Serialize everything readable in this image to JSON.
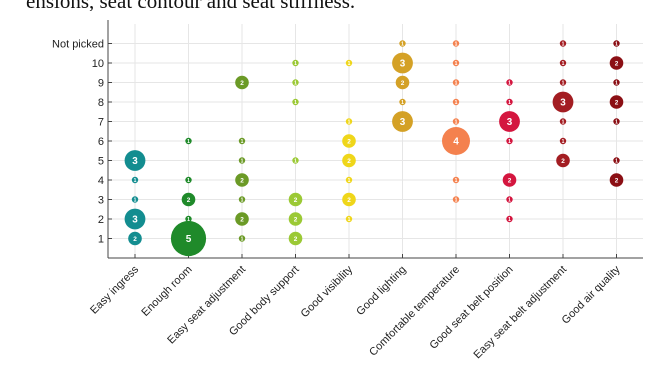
{
  "caption_fragment": "ensions, seat contour and seat stiffness.",
  "chart_data": {
    "type": "scatter",
    "subtype": "bubble",
    "title": "",
    "xlabel": "",
    "ylabel": "",
    "grid": true,
    "legend": "none",
    "y_ticks": [
      "1",
      "2",
      "3",
      "4",
      "5",
      "6",
      "7",
      "8",
      "9",
      "10",
      "Not picked"
    ],
    "categories": [
      "Easy ingress",
      "Enough room",
      "Easy seat adjustment",
      "Good body support",
      "Good visibility",
      "Good lighting",
      "Comfortable temperature",
      "Good seat belt position",
      "Easy seat belt adjustment",
      "Good air quality"
    ],
    "colors": [
      "#138d90",
      "#1f8a2a",
      "#6b9a26",
      "#9bc935",
      "#efd61a",
      "#d4a126",
      "#f4814e",
      "#d4163f",
      "#a31d22",
      "#8b0f14"
    ],
    "series": [
      {
        "category": "Easy ingress",
        "points": [
          {
            "y": 1,
            "n": 2
          },
          {
            "y": 2,
            "n": 3
          },
          {
            "y": 3,
            "n": 1
          },
          {
            "y": 4,
            "n": 1
          },
          {
            "y": 5,
            "n": 3
          }
        ]
      },
      {
        "category": "Enough room",
        "points": [
          {
            "y": 1,
            "n": 5
          },
          {
            "y": 2,
            "n": 1
          },
          {
            "y": 3,
            "n": 2
          },
          {
            "y": 4,
            "n": 1
          },
          {
            "y": 6,
            "n": 1
          }
        ]
      },
      {
        "category": "Easy seat adjustment",
        "points": [
          {
            "y": 1,
            "n": 1
          },
          {
            "y": 2,
            "n": 2
          },
          {
            "y": 3,
            "n": 1
          },
          {
            "y": 4,
            "n": 2
          },
          {
            "y": 5,
            "n": 1
          },
          {
            "y": 6,
            "n": 1
          },
          {
            "y": 9,
            "n": 2
          }
        ]
      },
      {
        "category": "Good body support",
        "points": [
          {
            "y": 1,
            "n": 2
          },
          {
            "y": 2,
            "n": 2
          },
          {
            "y": 3,
            "n": 2
          },
          {
            "y": 5,
            "n": 1
          },
          {
            "y": 8,
            "n": 1
          },
          {
            "y": 9,
            "n": 1
          },
          {
            "y": 10,
            "n": 1
          }
        ]
      },
      {
        "category": "Good visibility",
        "points": [
          {
            "y": 2,
            "n": 1
          },
          {
            "y": 3,
            "n": 2
          },
          {
            "y": 4,
            "n": 1
          },
          {
            "y": 5,
            "n": 2
          },
          {
            "y": 6,
            "n": 2
          },
          {
            "y": 7,
            "n": 1
          },
          {
            "y": 10,
            "n": 1
          }
        ]
      },
      {
        "category": "Good lighting",
        "points": [
          {
            "y": 7,
            "n": 3
          },
          {
            "y": 8,
            "n": 1
          },
          {
            "y": 9,
            "n": 2
          },
          {
            "y": 10,
            "n": 3
          },
          {
            "y": 11,
            "n": 1
          }
        ]
      },
      {
        "category": "Comfortable temperature",
        "points": [
          {
            "y": 3,
            "n": 1
          },
          {
            "y": 4,
            "n": 1
          },
          {
            "y": 6,
            "n": 4
          },
          {
            "y": 7,
            "n": 1
          },
          {
            "y": 8,
            "n": 1
          },
          {
            "y": 9,
            "n": 1
          },
          {
            "y": 10,
            "n": 1
          },
          {
            "y": 11,
            "n": 1
          }
        ]
      },
      {
        "category": "Good seat belt position",
        "points": [
          {
            "y": 2,
            "n": 1
          },
          {
            "y": 3,
            "n": 1
          },
          {
            "y": 4,
            "n": 2
          },
          {
            "y": 6,
            "n": 1
          },
          {
            "y": 7,
            "n": 3
          },
          {
            "y": 8,
            "n": 1
          },
          {
            "y": 9,
            "n": 1
          }
        ]
      },
      {
        "category": "Easy seat belt adjustment",
        "points": [
          {
            "y": 5,
            "n": 2
          },
          {
            "y": 6,
            "n": 1
          },
          {
            "y": 7,
            "n": 1
          },
          {
            "y": 8,
            "n": 3
          },
          {
            "y": 9,
            "n": 1
          },
          {
            "y": 10,
            "n": 1
          },
          {
            "y": 11,
            "n": 1
          }
        ]
      },
      {
        "category": "Good air quality",
        "points": [
          {
            "y": 4,
            "n": 2
          },
          {
            "y": 5,
            "n": 1
          },
          {
            "y": 7,
            "n": 1
          },
          {
            "y": 8,
            "n": 2
          },
          {
            "y": 9,
            "n": 1
          },
          {
            "y": 10,
            "n": 2
          },
          {
            "y": 11,
            "n": 1
          }
        ]
      }
    ]
  }
}
